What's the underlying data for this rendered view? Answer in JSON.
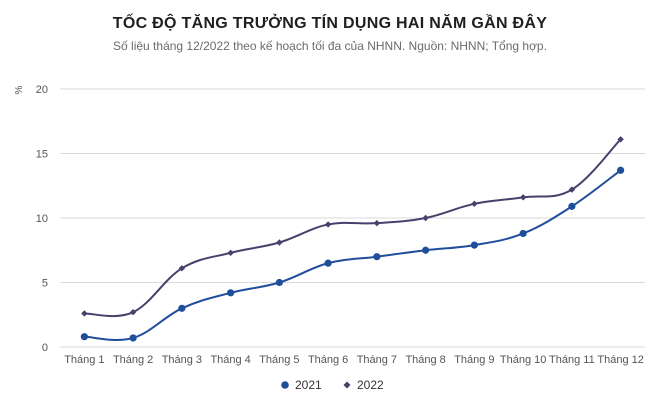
{
  "chart_data": {
    "type": "line",
    "title": "TỐC ĐỘ TĂNG TRƯỞNG TÍN DỤNG HAI NĂM GẦN ĐÂY",
    "subtitle": "Số liệu tháng 12/2022 theo kế hoạch tối đa của NHNN. Nguồn: NHNN; Tổng hợp.",
    "ylabel": "%",
    "xlabel": "",
    "ylim": [
      0,
      20
    ],
    "yticks": [
      0,
      5,
      10,
      15,
      20
    ],
    "grid": true,
    "legend_position": "bottom",
    "categories": [
      "Tháng 1",
      "Tháng 2",
      "Tháng 3",
      "Tháng 4",
      "Tháng 5",
      "Tháng 6",
      "Tháng 7",
      "Tháng 8",
      "Tháng 9",
      "Tháng 10",
      "Tháng 11",
      "Tháng 12"
    ],
    "series": [
      {
        "name": "2021",
        "color": "#1f4e9b",
        "marker": "circle",
        "values": [
          0.8,
          0.7,
          3.0,
          4.2,
          5.0,
          6.5,
          7.0,
          7.5,
          7.9,
          8.8,
          10.9,
          13.7
        ]
      },
      {
        "name": "2022",
        "color": "#4b3f6b",
        "marker": "diamond",
        "values": [
          2.6,
          2.7,
          6.1,
          7.3,
          8.1,
          9.5,
          9.6,
          10.0,
          11.1,
          11.6,
          12.2,
          16.1
        ]
      }
    ]
  }
}
